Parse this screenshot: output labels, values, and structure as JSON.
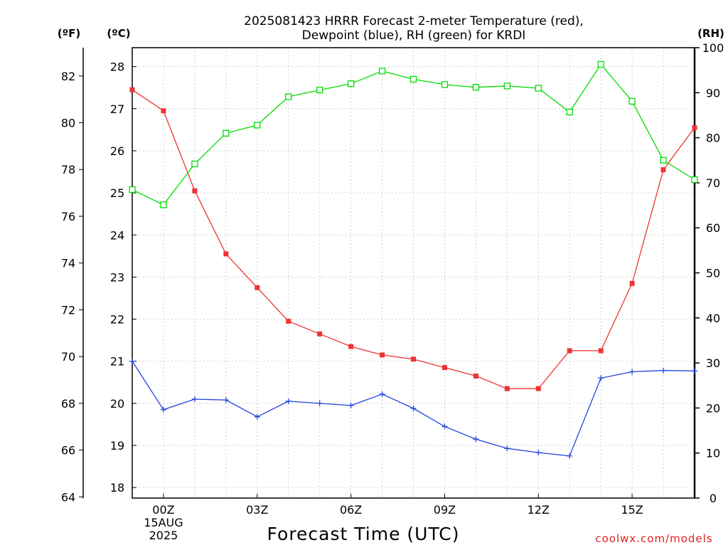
{
  "chart_data": {
    "type": "line",
    "title_lines": [
      "2025081423 HRRR Forecast 2-meter Temperature (red),",
      "Dewpoint (blue), RH (green) for KRDI"
    ],
    "xlabel": "Forecast Time (UTC)",
    "unit_labels": {
      "fahrenheit": "(ºF)",
      "celsius": "(ºC)",
      "rh": "(RH)"
    },
    "credit": "coolwx.com/models",
    "x_tick_labels": [
      {
        "hour": 0,
        "lines": [
          "00Z",
          "15AUG",
          "2025"
        ]
      },
      {
        "hour": 3,
        "lines": [
          "03Z"
        ]
      },
      {
        "hour": 6,
        "lines": [
          "06Z"
        ]
      },
      {
        "hour": 9,
        "lines": [
          "09Z"
        ]
      },
      {
        "hour": 12,
        "lines": [
          "12Z"
        ]
      },
      {
        "hour": 15,
        "lines": [
          "15Z"
        ]
      }
    ],
    "xlim": [
      -1,
      17
    ],
    "celsius_axis": {
      "ylim": [
        17.75,
        28.45
      ],
      "ticks": [
        18,
        19,
        20,
        21,
        22,
        23,
        24,
        25,
        26,
        27,
        28
      ]
    },
    "fahrenheit_axis": {
      "ticks": [
        64,
        66,
        68,
        70,
        72,
        74,
        76,
        78,
        80,
        82
      ]
    },
    "rh_axis": {
      "ylim": [
        0,
        100
      ],
      "ticks": [
        0,
        10,
        20,
        30,
        40,
        50,
        60,
        70,
        80,
        90,
        100
      ]
    },
    "grid": true,
    "colors": {
      "temperature": "#ee3333",
      "dewpoint": "#2244dd",
      "rh": "#00dd00",
      "grid": "#aaaaaa",
      "credit": "#e02020"
    },
    "series": [
      {
        "key": "temperature",
        "axis": "celsius",
        "marker": "filled-square",
        "x": [
          -1,
          0,
          1,
          2,
          3,
          4,
          5,
          6,
          7,
          8,
          9,
          10,
          11,
          12,
          13,
          14,
          15,
          16,
          17
        ],
        "values": [
          27.45,
          26.95,
          25.05,
          23.55,
          22.75,
          21.95,
          21.65,
          21.35,
          21.15,
          21.05,
          20.85,
          20.65,
          20.35,
          20.35,
          21.25,
          21.25,
          22.85,
          25.55,
          26.55
        ]
      },
      {
        "key": "dewpoint",
        "axis": "celsius",
        "marker": "plus",
        "x": [
          -1,
          0,
          1,
          2,
          3,
          4,
          5,
          6,
          7,
          8,
          9,
          10,
          11,
          12,
          13,
          14,
          15,
          16,
          17
        ],
        "values": [
          21.0,
          19.85,
          20.1,
          20.08,
          19.68,
          20.05,
          20.0,
          19.95,
          20.22,
          19.88,
          19.45,
          19.15,
          18.93,
          18.83,
          18.75,
          20.6,
          20.75,
          20.78,
          20.77
        ]
      },
      {
        "key": "rh",
        "axis": "rh",
        "marker": "open-square",
        "x": [
          -1,
          0,
          1,
          2,
          3,
          4,
          5,
          6,
          7,
          8,
          9,
          10,
          11,
          12,
          13,
          14,
          15,
          16,
          17
        ],
        "values": [
          68.5,
          65.1,
          74.2,
          81.0,
          82.8,
          89.1,
          90.6,
          92.0,
          94.8,
          93.0,
          91.8,
          91.2,
          91.5,
          91.0,
          85.7,
          96.3,
          88.1,
          75.0,
          70.7
        ]
      }
    ]
  }
}
